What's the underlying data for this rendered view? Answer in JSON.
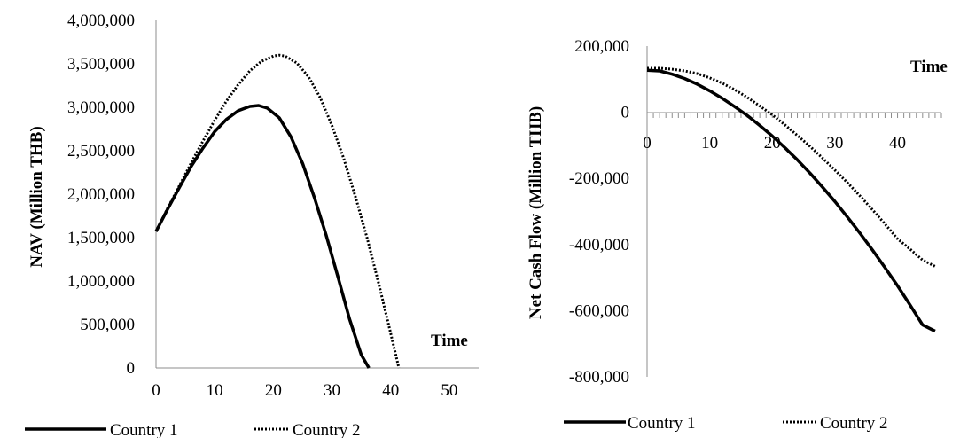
{
  "chart_data": [
    {
      "type": "line",
      "title": "",
      "xlabel": "Time",
      "ylabel": "NAV (Million THB)",
      "xlim": [
        0,
        55
      ],
      "ylim": [
        0,
        4000000
      ],
      "x_ticks": [
        0,
        10,
        20,
        30,
        40,
        50
      ],
      "y_ticks": [
        0,
        500000,
        1000000,
        1500000,
        2000000,
        2500000,
        3000000,
        3500000,
        4000000
      ],
      "x_tick_labels": [
        "0",
        "10",
        "20",
        "30",
        "40",
        "50"
      ],
      "y_tick_labels": [
        "0",
        "500,000",
        "1,000,000",
        "1,500,000",
        "2,000,000",
        "2,500,000",
        "3,000,000",
        "3,500,000",
        "4,000,000"
      ],
      "grid": false,
      "legend": "bottom",
      "series": [
        {
          "name": "Country 1",
          "style": "solid",
          "x": [
            0,
            2,
            4,
            6,
            8,
            10,
            12,
            14,
            16,
            17.5,
            19,
            21,
            23,
            25,
            27,
            29,
            31,
            33,
            35,
            36.3
          ],
          "y": [
            1570000,
            1830000,
            2080000,
            2320000,
            2530000,
            2720000,
            2860000,
            2960000,
            3010000,
            3020000,
            2990000,
            2880000,
            2660000,
            2350000,
            1960000,
            1530000,
            1050000,
            560000,
            150000,
            0
          ]
        },
        {
          "name": "Country 2",
          "style": "dotted",
          "x": [
            0,
            2,
            4,
            6,
            8,
            10,
            12,
            14,
            16,
            18,
            20,
            21,
            22,
            24,
            26,
            28,
            30,
            32,
            34,
            36,
            38,
            40,
            41.4
          ],
          "y": [
            1570000,
            1840000,
            2100000,
            2360000,
            2610000,
            2850000,
            3070000,
            3260000,
            3420000,
            3530000,
            3590000,
            3600000,
            3590000,
            3510000,
            3350000,
            3110000,
            2790000,
            2410000,
            1970000,
            1490000,
            960000,
            400000,
            0
          ]
        }
      ]
    },
    {
      "type": "line",
      "title": "",
      "xlabel": "Time",
      "ylabel": "Net Cash Flow (Million THB)",
      "xlim": [
        0,
        47
      ],
      "ylim": [
        -800000,
        200000
      ],
      "x_ticks": [
        0,
        10,
        20,
        30,
        40
      ],
      "y_ticks": [
        -800000,
        -600000,
        -400000,
        -200000,
        0,
        200000
      ],
      "x_tick_labels": [
        "0",
        "10",
        "20",
        "30",
        "40"
      ],
      "y_tick_labels": [
        "-800,000",
        "-600,000",
        "-400,000",
        "-200,000",
        "0",
        "200,000"
      ],
      "grid": false,
      "legend": "bottom",
      "series": [
        {
          "name": "Country 1",
          "style": "solid",
          "x": [
            0,
            2,
            4,
            6,
            8,
            10,
            12,
            14,
            16,
            18,
            20,
            22,
            24,
            26,
            28,
            30,
            32,
            34,
            36,
            38,
            40,
            42,
            44,
            46
          ],
          "y": [
            127000,
            125000,
            115000,
            102000,
            85000,
            65000,
            42000,
            17000,
            -10000,
            -40000,
            -72000,
            -107000,
            -144000,
            -184000,
            -226000,
            -270000,
            -317000,
            -366000,
            -417000,
            -470000,
            -525000,
            -583000,
            -643000,
            -662000
          ]
        },
        {
          "name": "Country 2",
          "style": "dotted",
          "x": [
            0,
            2,
            4,
            6,
            8,
            10,
            12,
            14,
            16,
            18,
            20,
            22,
            24,
            26,
            28,
            30,
            32,
            34,
            36,
            38,
            40,
            42,
            44,
            46
          ],
          "y": [
            133000,
            133000,
            130000,
            125000,
            117000,
            104000,
            88000,
            68000,
            45000,
            19000,
            -8000,
            -38000,
            -70000,
            -103000,
            -138000,
            -175000,
            -213000,
            -253000,
            -295000,
            -338000,
            -383000,
            -414000,
            -447000,
            -466000
          ]
        }
      ]
    }
  ]
}
